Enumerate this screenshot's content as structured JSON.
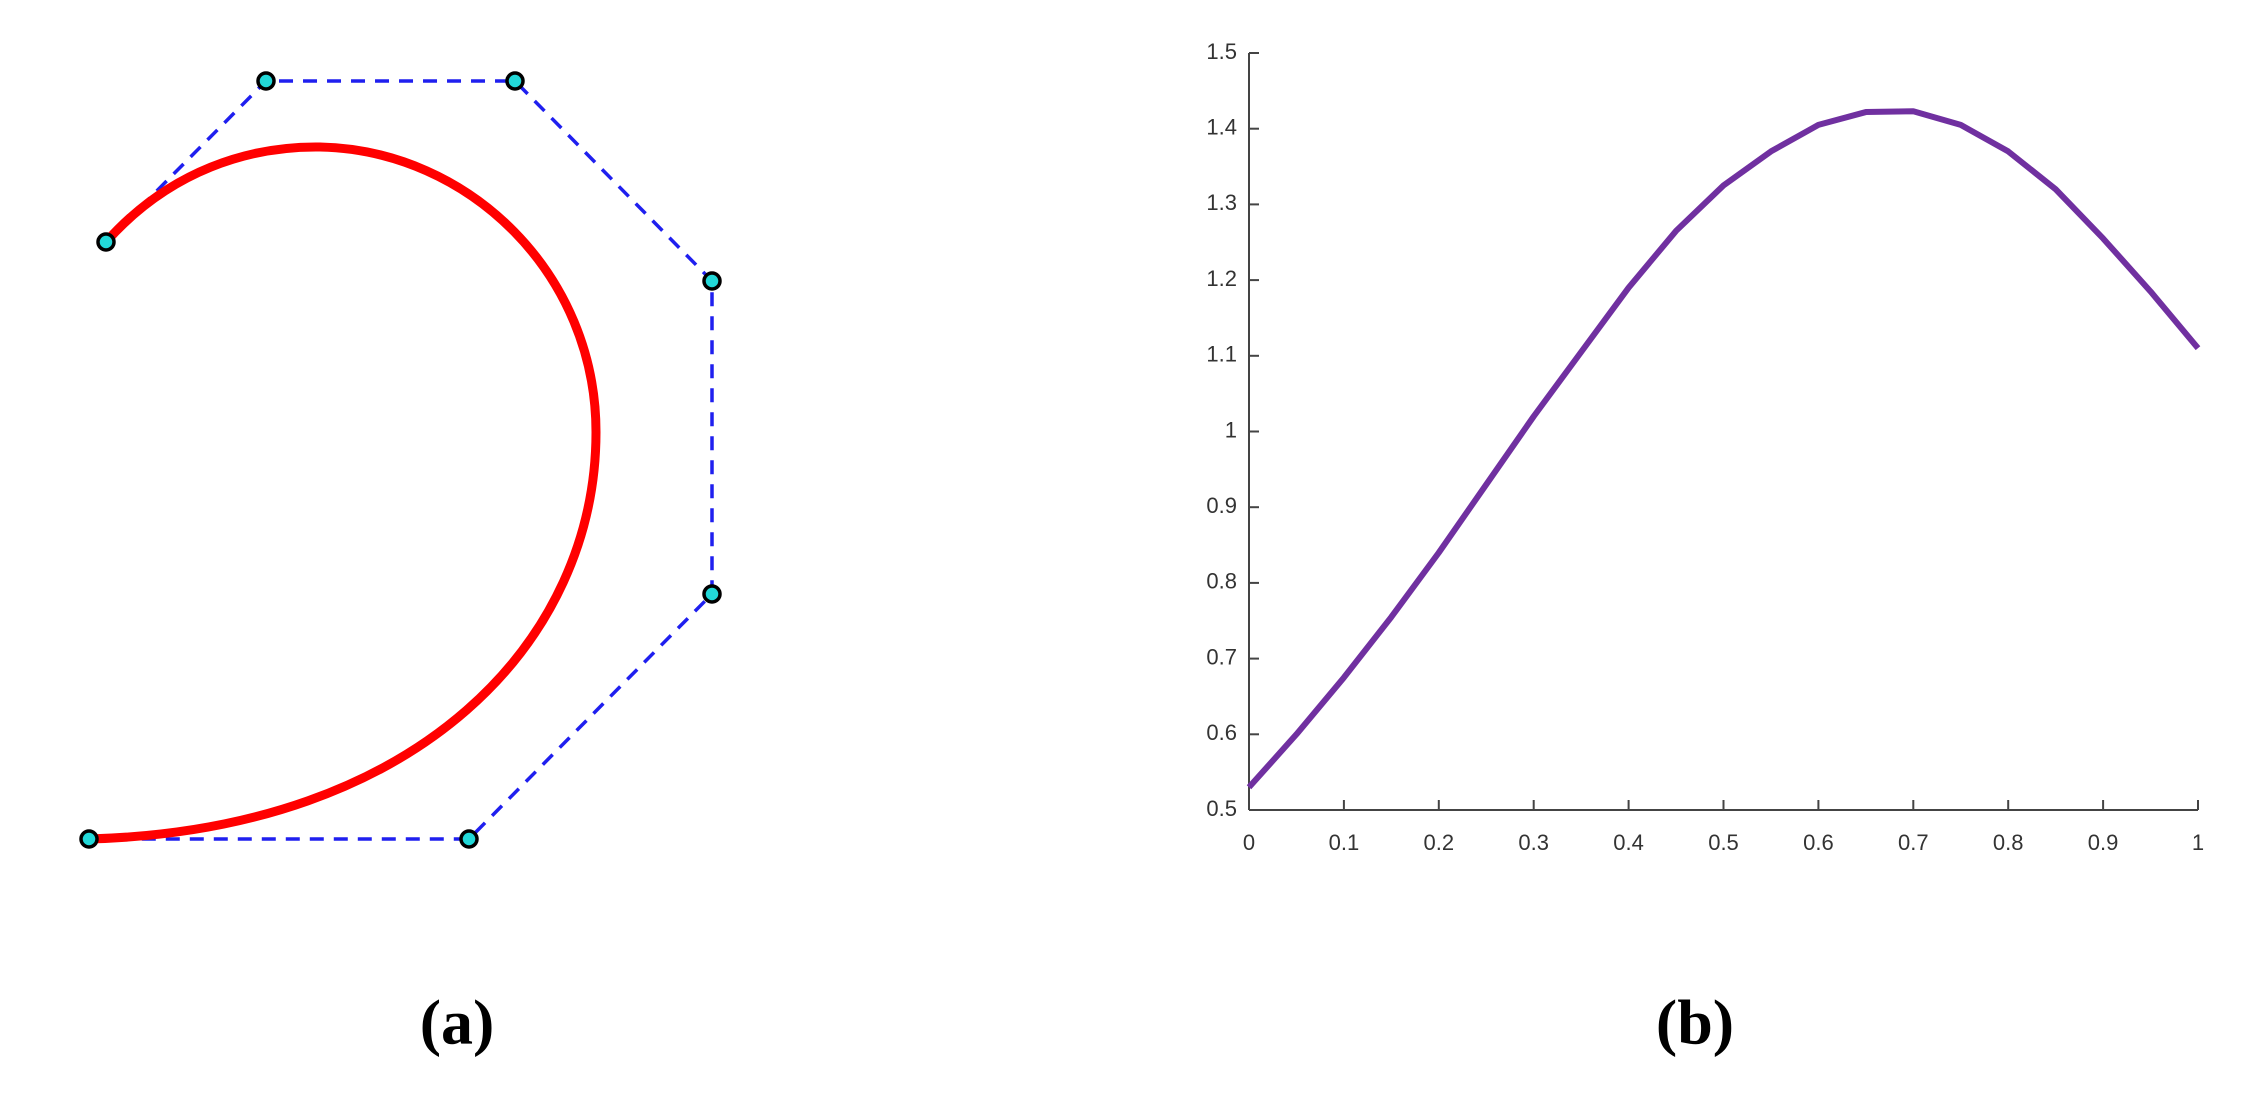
{
  "diagram": {
    "label": "(a)"
  },
  "chart_data": {
    "type": "line",
    "panel_label": "(b)",
    "x": [
      0,
      0.05,
      0.1,
      0.15,
      0.2,
      0.25,
      0.3,
      0.35,
      0.4,
      0.45,
      0.5,
      0.55,
      0.6,
      0.65,
      0.7,
      0.75,
      0.8,
      0.85,
      0.9,
      0.95,
      1
    ],
    "series": [
      {
        "color": "#7030a0",
        "values": [
          0.53,
          0.6,
          0.675,
          0.755,
          0.84,
          0.93,
          1.02,
          1.105,
          1.19,
          1.265,
          1.325,
          1.37,
          1.405,
          1.422,
          1.423,
          1.405,
          1.37,
          1.32,
          1.255,
          1.185,
          1.11
        ]
      }
    ],
    "xlim": [
      0,
      1
    ],
    "xticks": [
      0,
      0.1,
      0.2,
      0.3,
      0.4,
      0.5,
      0.6,
      0.7,
      0.8,
      0.9,
      1
    ],
    "ylim": [
      0.5,
      1.5
    ],
    "yticks": [
      0.5,
      0.6,
      0.7,
      0.8,
      0.9,
      1,
      1.1,
      1.2,
      1.3,
      1.4,
      1.5
    ],
    "grid": false
  }
}
